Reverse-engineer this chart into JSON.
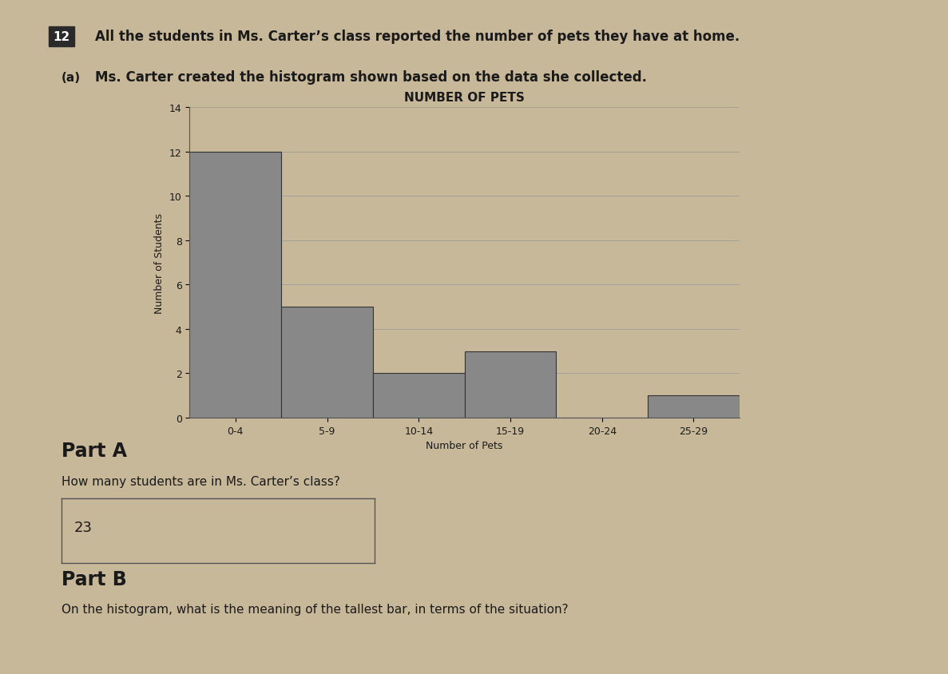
{
  "question_number": "12",
  "question_text": "All the students in Ms. Carter’s class reported the number of pets they have at home.",
  "sub_label": "(a)",
  "sub_text": "Ms. Carter created the histogram shown based on the data she collected.",
  "histogram_title": "NUMBER OF PETS",
  "categories": [
    "0-4",
    "5-9",
    "10-14",
    "15-19",
    "20-24",
    "25-29"
  ],
  "values": [
    12,
    5,
    2,
    3,
    0,
    1
  ],
  "bar_color": "#888888",
  "bar_edge_color": "#333333",
  "xlabel": "Number of Pets",
  "ylabel": "Number of Students",
  "ylim": [
    0,
    14
  ],
  "yticks": [
    0,
    2,
    4,
    6,
    8,
    10,
    12,
    14
  ],
  "grid_color": "#999999",
  "bg_color": "#c8b89a",
  "plot_bg_color": "#c8b89a",
  "part_a_label": "Part A",
  "part_a_question": "How many students are in Ms. Carter’s class?",
  "part_a_answer": "23",
  "part_b_label": "Part B",
  "part_b_question": "On the histogram, what is the meaning of the tallest bar, in terms of the situation?",
  "answer_box_color": "#c8b89a",
  "text_color": "#1a1a1a"
}
